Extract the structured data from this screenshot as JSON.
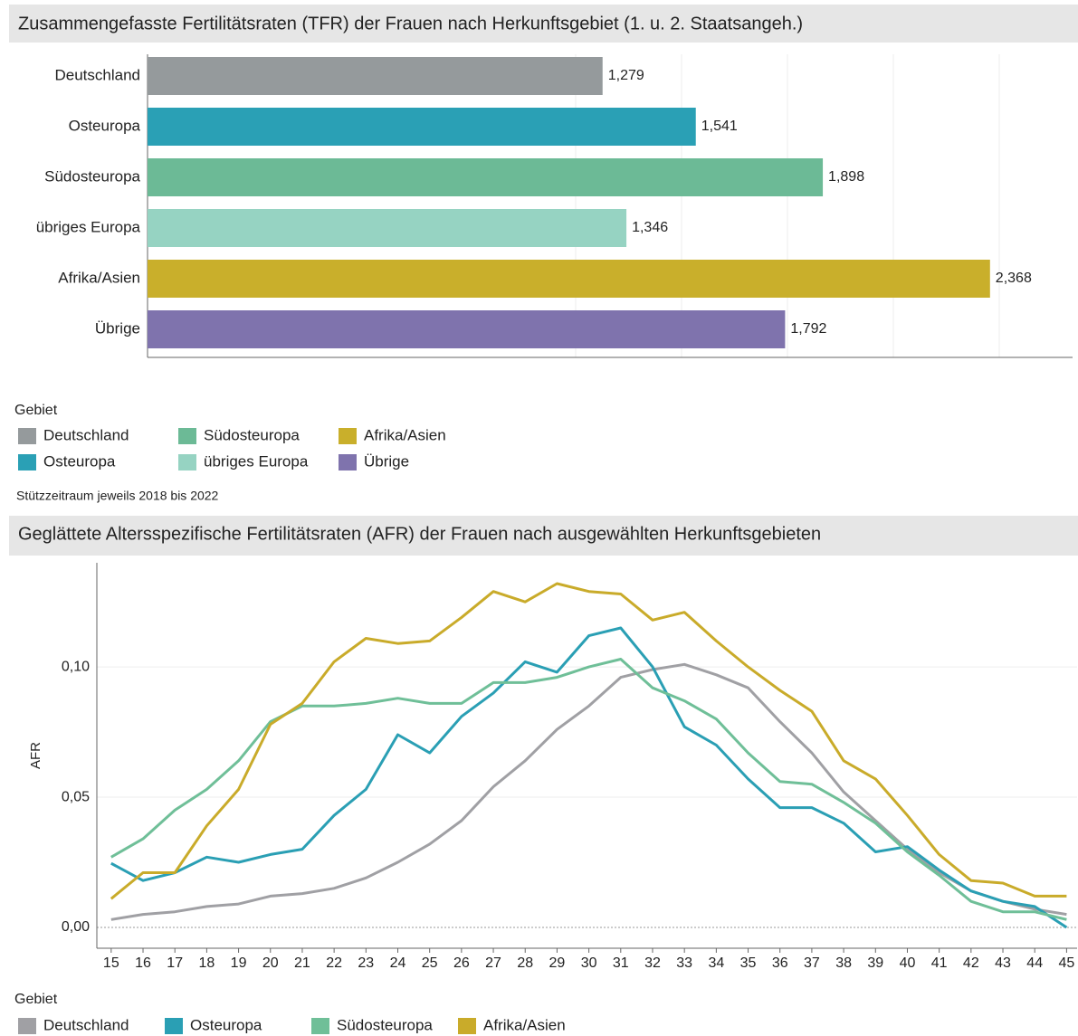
{
  "chart_data": [
    {
      "type": "bar",
      "orientation": "horizontal",
      "title": "Zusammengefasste Fertilitätsraten (TFR) der Frauen nach Herkunftsgebiet (1. u. 2. Staatsangeh.)",
      "categories": [
        "Deutschland",
        "Osteuropa",
        "Südosteuropa",
        "übriges Europa",
        "Afrika/Asien",
        "Übrige"
      ],
      "values": [
        1.279,
        1.541,
        1.898,
        1.346,
        2.368,
        1.792
      ],
      "value_labels": [
        "1,279",
        "1,541",
        "1,898",
        "1,346",
        "2,368",
        "1,792"
      ],
      "colors": [
        "#959a9c",
        "#2aa0b5",
        "#6cba96",
        "#96d3c2",
        "#c9af2b",
        "#7f73ad"
      ],
      "xlim": [
        0,
        2.6
      ],
      "legend_title": "Gebiet",
      "note": "Stützzeitraum jeweils 2018 bis 2022"
    },
    {
      "type": "line",
      "title": "Geglättete Altersspezifische Fertilitätsraten (AFR) der Frauen nach ausgewählten Herkunftsgebieten",
      "y_label": "AFR",
      "x": [
        15,
        16,
        17,
        18,
        19,
        20,
        21,
        22,
        23,
        24,
        25,
        26,
        27,
        28,
        29,
        30,
        31,
        32,
        33,
        34,
        35,
        36,
        37,
        38,
        39,
        40,
        41,
        42,
        43,
        44,
        45
      ],
      "xlim": [
        14.55,
        45.33
      ],
      "xticks": [
        15,
        16,
        17,
        18,
        19,
        20,
        21,
        22,
        23,
        24,
        25,
        26,
        27,
        28,
        29,
        30,
        31,
        32,
        33,
        34,
        35,
        36,
        37,
        38,
        39,
        40,
        41,
        42,
        43,
        44,
        45
      ],
      "ylim": [
        -0.008,
        0.14
      ],
      "yticks": [
        {
          "value": 0,
          "label": "0,00"
        },
        {
          "value": 0.05,
          "label": "0,05"
        },
        {
          "value": 0.1,
          "label": "0,10"
        }
      ],
      "grid": true,
      "legend_title": "Gebiet",
      "series": [
        {
          "name": "Deutschland",
          "color": "#a0a0a4",
          "values": [
            0.003,
            0.005,
            0.006,
            0.008,
            0.009,
            0.012,
            0.013,
            0.015,
            0.019,
            0.025,
            0.032,
            0.041,
            0.054,
            0.064,
            0.076,
            0.085,
            0.096,
            0.099,
            0.101,
            0.097,
            0.092,
            0.079,
            0.067,
            0.052,
            0.041,
            0.03,
            0.021,
            0.014,
            0.01,
            0.007,
            0.005
          ]
        },
        {
          "name": "Osteuropa",
          "color": "#2a9fb4",
          "values": [
            0.0246,
            0.018,
            0.021,
            0.027,
            0.025,
            0.028,
            0.03,
            0.043,
            0.053,
            0.074,
            0.067,
            0.081,
            0.09,
            0.102,
            0.098,
            0.112,
            0.115,
            0.1,
            0.077,
            0.07,
            0.057,
            0.046,
            0.046,
            0.04,
            0.029,
            0.031,
            0.022,
            0.014,
            0.01,
            0.008,
            0.0
          ]
        },
        {
          "name": "Südosteuropa",
          "color": "#6fbf98",
          "values": [
            0.027,
            0.034,
            0.045,
            0.053,
            0.064,
            0.079,
            0.085,
            0.085,
            0.086,
            0.088,
            0.086,
            0.086,
            0.094,
            0.094,
            0.096,
            0.1,
            0.103,
            0.092,
            0.087,
            0.08,
            0.067,
            0.056,
            0.055,
            0.048,
            0.04,
            0.029,
            0.02,
            0.01,
            0.006,
            0.006,
            0.003
          ]
        },
        {
          "name": "Afrika/Asien",
          "color": "#c9ab2a",
          "values": [
            0.011,
            0.021,
            0.021,
            0.039,
            0.053,
            0.078,
            0.086,
            0.102,
            0.111,
            0.109,
            0.11,
            0.119,
            0.129,
            0.125,
            0.132,
            0.129,
            0.128,
            0.118,
            0.121,
            0.11,
            0.1,
            0.091,
            0.083,
            0.064,
            0.057,
            0.043,
            0.028,
            0.018,
            0.017,
            0.012,
            0.012
          ]
        }
      ]
    }
  ]
}
